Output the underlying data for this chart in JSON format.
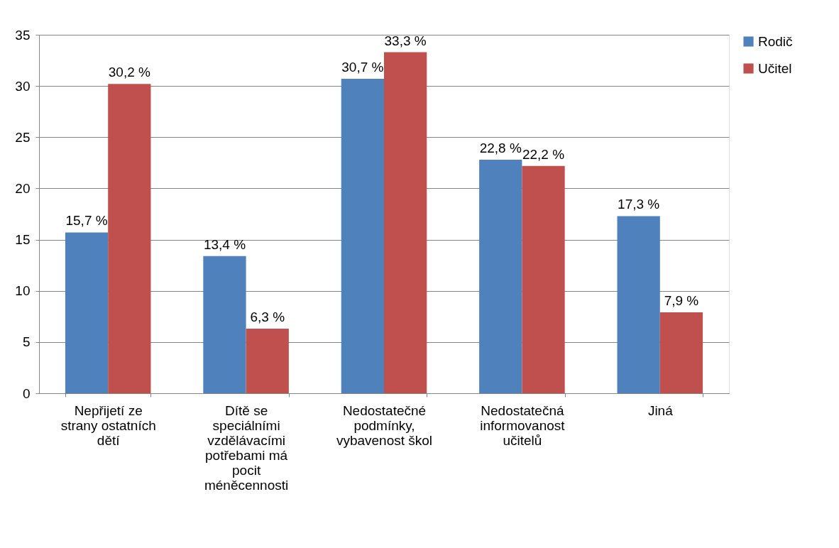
{
  "chart_data": {
    "type": "bar",
    "categories": [
      "Nepřijetí ze strany ostatních dětí",
      "Dítě se speciálními vzdělávacími potřebami má pocit méněcennosti",
      "Nedostatečné podmínky, vybavenost škol",
      "Nedostatečná informovanost učitelů",
      "Jiná"
    ],
    "series": [
      {
        "name": "Rodič",
        "color": "#4f81bd",
        "values": [
          15.7,
          13.4,
          30.7,
          22.8,
          17.3
        ],
        "value_labels": [
          "15,7 %",
          "13,4 %",
          "30,7 %",
          "22,8 %",
          "17,3 %"
        ]
      },
      {
        "name": "Učitel",
        "color": "#c0504d",
        "values": [
          30.2,
          6.3,
          33.3,
          22.2,
          7.9
        ],
        "value_labels": [
          "30,2 %",
          "6,3 %",
          "33,3 %",
          "22,2 %",
          "7,9 %"
        ]
      }
    ],
    "ylim": [
      0,
      35
    ],
    "yticks": [
      0,
      5,
      10,
      15,
      20,
      25,
      30,
      35
    ],
    "grid": "y",
    "legend": "right"
  }
}
